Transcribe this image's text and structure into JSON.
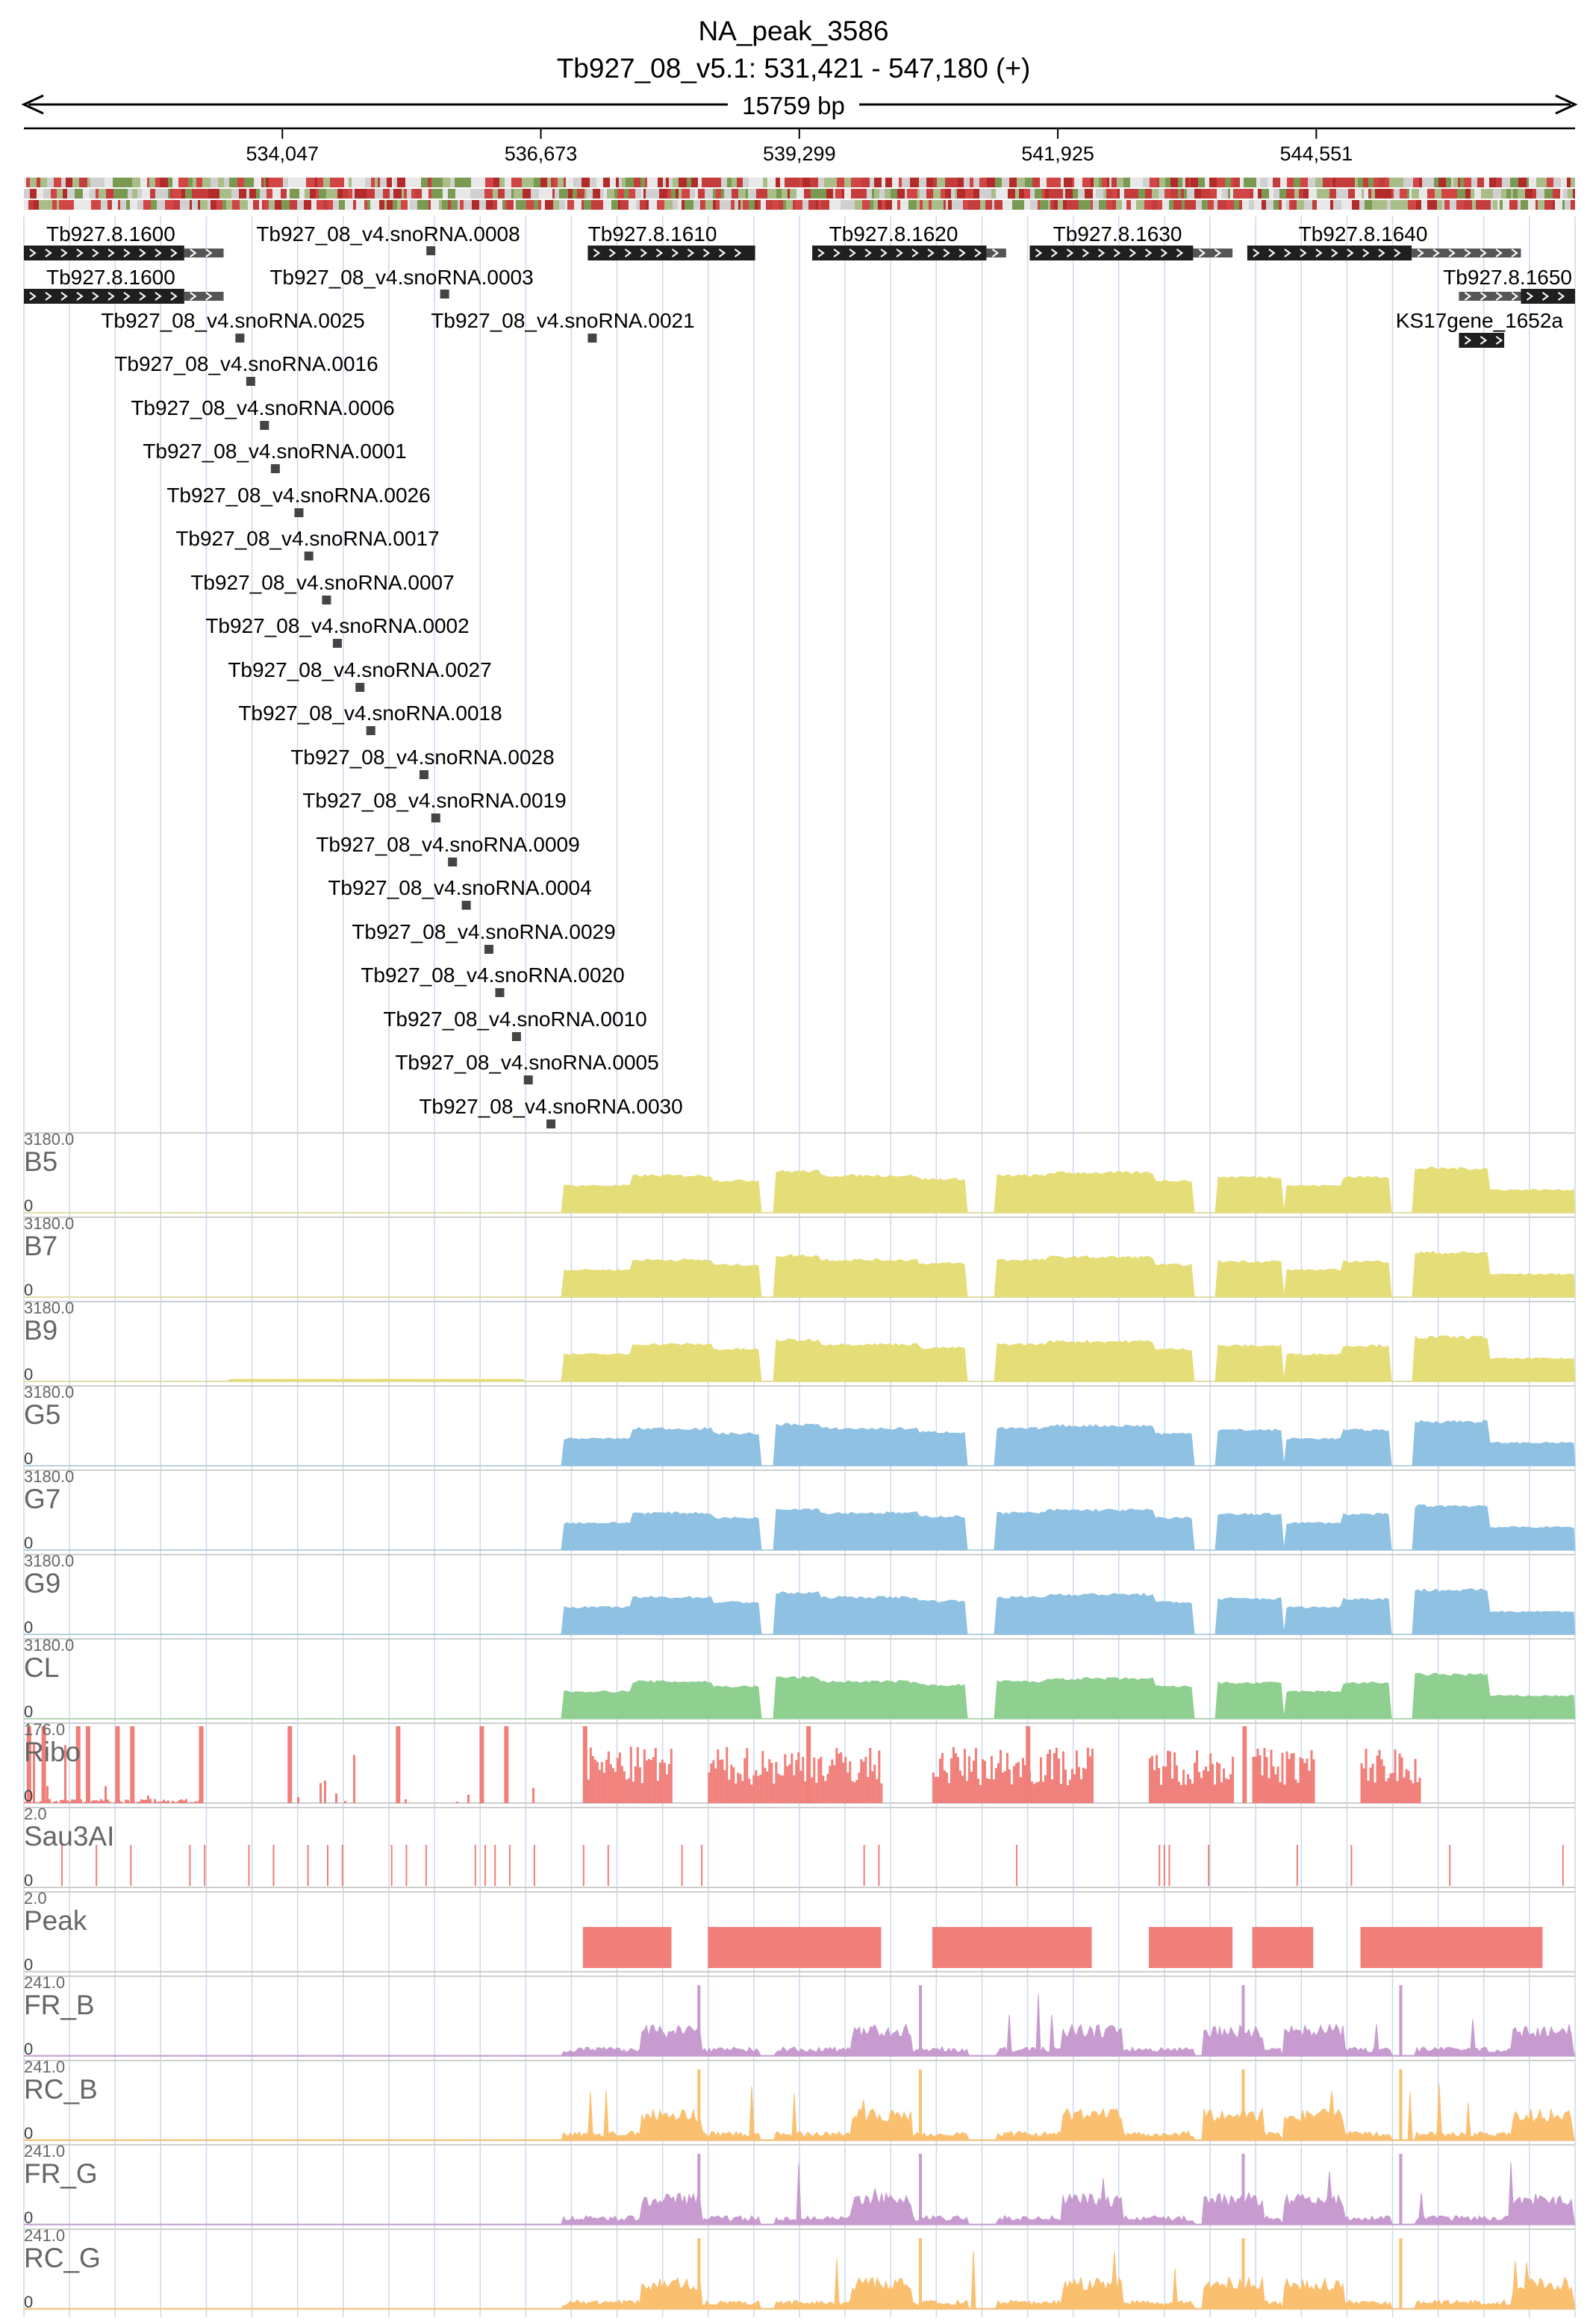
{
  "header": {
    "title": "NA_peak_3586",
    "region": "Tb927_08_v5.1: 531,421 - 547,180 (+)",
    "span_label": "15759 bp"
  },
  "axis": {
    "start": 531421,
    "end": 547180,
    "ticks": [
      534047,
      536673,
      539299,
      541925,
      544551
    ],
    "tick_labels": [
      "534,047",
      "536,673",
      "539,299",
      "541,925",
      "544,551"
    ]
  },
  "colors": {
    "gene": "#1f1f1f",
    "gene_utr": "#555555",
    "yellow": "#e5dd78",
    "blue": "#8fc1e3",
    "green": "#8fcf8f",
    "red": "#f07f7a",
    "purple": "#c79ad0",
    "orange": "#fbbf70",
    "grid": "#c9d9ee"
  },
  "genes": [
    {
      "label": "Tb927.8.1600",
      "start": 531421,
      "end": 533050,
      "utr_end": 533450
    },
    {
      "label": "Tb927.8.1600",
      "start": 531421,
      "end": 533050,
      "utr_end": 533450
    },
    {
      "label": "Tb927_08_v4.snoRNA.0008",
      "start": 535510,
      "end": 535580
    },
    {
      "label": "Tb927_08_v4.snoRNA.0003",
      "start": 535650,
      "end": 535720
    },
    {
      "label": "Tb927_08_v4.snoRNA.0025",
      "start": 533570,
      "end": 533640
    },
    {
      "label": "Tb927_08_v4.snoRNA.0021",
      "start": 537150,
      "end": 537220
    },
    {
      "label": "Tb927_08_v4.snoRNA.0016",
      "start": 533680,
      "end": 533750
    },
    {
      "label": "Tb927_08_v4.snoRNA.0006",
      "start": 533820,
      "end": 533890
    },
    {
      "label": "Tb927_08_v4.snoRNA.0001",
      "start": 533930,
      "end": 534000
    },
    {
      "label": "Tb927_08_v4.snoRNA.0026",
      "start": 534170,
      "end": 534240
    },
    {
      "label": "Tb927_08_v4.snoRNA.0017",
      "start": 534270,
      "end": 534340
    },
    {
      "label": "Tb927_08_v4.snoRNA.0007",
      "start": 534450,
      "end": 534520
    },
    {
      "label": "Tb927_08_v4.snoRNA.0002",
      "start": 534560,
      "end": 534630
    },
    {
      "label": "Tb927_08_v4.snoRNA.0027",
      "start": 534790,
      "end": 534860
    },
    {
      "label": "Tb927_08_v4.snoRNA.0018",
      "start": 534900,
      "end": 534970
    },
    {
      "label": "Tb927_08_v4.snoRNA.0028",
      "start": 535440,
      "end": 535510
    },
    {
      "label": "Tb927_08_v4.snoRNA.0019",
      "start": 535560,
      "end": 535630
    },
    {
      "label": "Tb927_08_v4.snoRNA.0009",
      "start": 535730,
      "end": 535800
    },
    {
      "label": "Tb927_08_v4.snoRNA.0004",
      "start": 535870,
      "end": 535940
    },
    {
      "label": "Tb927_08_v4.snoRNA.0029",
      "start": 536100,
      "end": 536170
    },
    {
      "label": "Tb927_08_v4.snoRNA.0020",
      "start": 536210,
      "end": 536280
    },
    {
      "label": "Tb927_08_v4.snoRNA.0010",
      "start": 536380,
      "end": 536450
    },
    {
      "label": "Tb927_08_v4.snoRNA.0005",
      "start": 536500,
      "end": 536570
    },
    {
      "label": "Tb927_08_v4.snoRNA.0030",
      "start": 536730,
      "end": 536800
    },
    {
      "label": "Tb927.8.1610",
      "start": 537150,
      "end": 538850
    },
    {
      "label": "Tb927.8.1620",
      "start": 539430,
      "end": 541200,
      "utr_end": 541400
    },
    {
      "label": "Tb927.8.1630",
      "start": 541640,
      "end": 543300,
      "utr_end": 543700
    },
    {
      "label": "Tb927.8.1640",
      "start": 543850,
      "end": 545520,
      "utr_end": 546630
    },
    {
      "label": "Tb927.8.1650",
      "start": 546000,
      "end": 546630,
      "cds_start": 546630,
      "cds_end": 547180
    },
    {
      "label": "KS17gene_1652a",
      "start": 546000,
      "end": 546460
    }
  ],
  "tracks": [
    {
      "name": "B5",
      "max": "3180.0",
      "min": "0"
    },
    {
      "name": "B7",
      "max": "3180.0",
      "min": "0"
    },
    {
      "name": "B9",
      "max": "3180.0",
      "min": "0"
    },
    {
      "name": "G5",
      "max": "3180.0",
      "min": "0"
    },
    {
      "name": "G7",
      "max": "3180.0",
      "min": "0"
    },
    {
      "name": "G9",
      "max": "3180.0",
      "min": "0"
    },
    {
      "name": "CL",
      "max": "3180.0",
      "min": "0"
    },
    {
      "name": "Ribo",
      "max": "176.0",
      "min": "0"
    },
    {
      "name": "Sau3AI",
      "max": "2.0",
      "min": "0"
    },
    {
      "name": "Peak",
      "max": "2.0",
      "min": "0"
    },
    {
      "name": "FR_B",
      "max": "241.0",
      "min": "0"
    },
    {
      "name": "RC_B",
      "max": "241.0",
      "min": "0"
    },
    {
      "name": "FR_G",
      "max": "241.0",
      "min": "0"
    },
    {
      "name": "RC_G",
      "max": "241.0",
      "min": "0"
    }
  ],
  "chart_data": {
    "type": "area",
    "x_range": [
      531421,
      547180
    ],
    "coverage_segments": [
      {
        "start": 536900,
        "end": 537600,
        "level": 0.38
      },
      {
        "start": 537600,
        "end": 538400,
        "level": 0.52
      },
      {
        "start": 538400,
        "end": 538900,
        "level": 0.45
      },
      {
        "start": 539050,
        "end": 539500,
        "level": 0.58
      },
      {
        "start": 539500,
        "end": 540500,
        "level": 0.52
      },
      {
        "start": 540500,
        "end": 541000,
        "level": 0.47
      },
      {
        "start": 541300,
        "end": 541800,
        "level": 0.52
      },
      {
        "start": 541800,
        "end": 542900,
        "level": 0.56
      },
      {
        "start": 542900,
        "end": 543300,
        "level": 0.45
      },
      {
        "start": 543550,
        "end": 544200,
        "level": 0.5
      },
      {
        "start": 544250,
        "end": 544800,
        "level": 0.38
      },
      {
        "start": 544800,
        "end": 545300,
        "level": 0.5
      },
      {
        "start": 545550,
        "end": 546300,
        "level": 0.62
      },
      {
        "start": 546300,
        "end": 547180,
        "level": 0.32
      }
    ],
    "peaks": [
      {
        "start": 537100,
        "end": 538000
      },
      {
        "start": 538370,
        "end": 540130
      },
      {
        "start": 540650,
        "end": 542270
      },
      {
        "start": 542850,
        "end": 543700
      },
      {
        "start": 543900,
        "end": 544520
      },
      {
        "start": 545000,
        "end": 546850
      }
    ],
    "sau3ai_sites": [
      531800,
      532150,
      532500,
      533100,
      533250,
      533700,
      533950,
      534300,
      534500,
      534650,
      535150,
      535300,
      535500,
      536000,
      536100,
      536200,
      536350,
      536600,
      537100,
      537350,
      538100,
      538300,
      539950,
      540100,
      541500,
      542950,
      543000,
      543050,
      543450,
      544350,
      544900,
      545900,
      547050
    ],
    "ribo_spikes": [
      531450,
      531600,
      531950,
      532050,
      532350,
      532500,
      533200,
      534100,
      535200,
      536050,
      536300,
      537100,
      539370,
      541600,
      543800
    ]
  }
}
